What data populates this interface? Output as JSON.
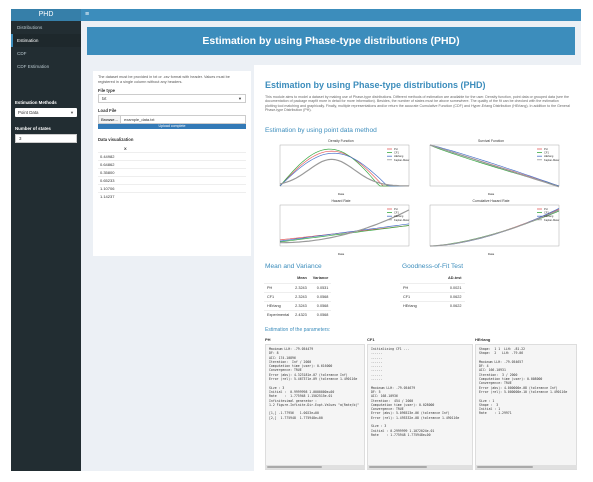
{
  "header": {
    "logo": "PHD",
    "menu_icon": "hamburger-icon"
  },
  "sidebar": {
    "items": [
      {
        "label": "Distributions"
      },
      {
        "label": "Estimation"
      },
      {
        "label": "CDF"
      },
      {
        "label": "CDF Estimation"
      }
    ],
    "estimation_methods_label": "Estimation Methods",
    "estimation_method_value": "Point Data",
    "num_states_label": "Number of states",
    "num_states_value": "3"
  },
  "page_title": "Estimation by using Phase-type distributions (PHD)",
  "left_panel": {
    "note": "The dataset must be provided in txt or .csv format with header. Values must be registered in a single column without any headers.",
    "file_type_label": "File type",
    "file_type_value": "txt",
    "load_file_label": "Load File",
    "browse_label": "Browse...",
    "file_name": "example_data.txt",
    "upload_status": "Upload complete",
    "data_viz_label": "Data visualization",
    "table_header": "X",
    "table_rows": [
      "0.44982",
      "0.64862",
      "0.35800",
      "0.65233",
      "1.10706",
      "1.14237"
    ]
  },
  "main": {
    "title": "Estimation by using Phase-type distributions (PHD)",
    "description": "This module aims to model a dataset by making use of Phase-type distributions. Different methods of estimation are available for the user. Density function, point data or grouped data (see the documentation of package mapfit more in detail for more information). Besides, the number of states must be above somewhere. The quality of the fit can be checked with the estimation plotting tool matching and graphically. Finally, multiple representations and/or return the accurate Cumulative Function (CDF) and Hyper-Erlang Distribution (HErlang). In addition to the General Phase-type Distribution (PH).",
    "point_method_title": "Estimation by using point data method",
    "mean_variance_title": "Mean and Variance",
    "gof_title": "Goodness-of-Fit Test",
    "estimation_params_title": "Estimation of the parameters:"
  },
  "plots": [
    {
      "title": "Density Function",
      "xlabel": "Data"
    },
    {
      "title": "Survival Function",
      "xlabel": "Data"
    },
    {
      "title": "Hazard Rate",
      "xlabel": "Data"
    },
    {
      "title": "Cumulative Hazard Rate",
      "xlabel": "Data"
    }
  ],
  "legend": [
    "PH",
    "CF1",
    "HErlang",
    "Kaplan-Meier"
  ],
  "mean_variance": {
    "headers": [
      "",
      "Mean",
      "Variance"
    ],
    "rows": [
      [
        "PH",
        "2.3243",
        "0.0531"
      ],
      [
        "CF1",
        "2.3243",
        "0.0568"
      ],
      [
        "HErlang",
        "2.3243",
        "0.0568"
      ],
      [
        "Experimental",
        "2.4323",
        "0.0568"
      ]
    ]
  },
  "gof": {
    "headers": [
      "",
      "AD-test"
    ],
    "rows": [
      [
        "PH",
        "0.0021"
      ],
      [
        "CF1",
        "0.0622"
      ],
      [
        "HErlang",
        "0.0622"
      ]
    ]
  },
  "estimation": [
    {
      "name": "PH",
      "text": "Maximum LLH: -79.054479\nDF: 8\nAIC: 174.10896\nIteration:  Inf / 2000\nComputation time (user): 0.616000\nConvergence: TRUE\nError (abs): 4.323181e-07 (tolerance Inf)\nError (rel): 5.467371e-09 (tolerance 1.490116e\n\nSize : 3\nInitial :  0.9999998 1.0000000e+00\nRate    :  1.775948 1.1502515e-01\nInfinitesimal generator :\n1.2 Figure-Infinite-Dir-Expt-Values \"a(Rate/b)\"\n\n[1,] -1.77956   1.0023e+00\n[2,]  1.775948  1.775948e+00"
    },
    {
      "name": "CF1",
      "text": "Initializing CF1 ...\n......\n......\n......\n......\n......\n......\n......\n\nMaximum LLH: -79.054679\nDF: 5\nAIC: 168.10936\nIteration:  454 / 2000\nComputation time (user): 0.028000\nConvergence: TRUE\nError (abs): 5.096523e-06 (tolerance Inf)\nError (rel): 1.495332e-08 (tolerance 1.490116e\n\nSize : 3\nInitial : 0.2999999 1.1072024e-01\nRate    : 1.775948 1.775948e+00"
    },
    {
      "name": "HErlang",
      "text": "Shape:  1 1  LLH: -81.22\nShape:  2   LLH: -79.06\n\nMaximum LLH: -79.054657\nDF: 4\nAIC: 166.10931\nIteration:  3 / 2000\nComputation time (user): 0.008000\nConvergence: TRUE\nError (abs): 4.000000e-08 (tolerance Inf)\nError (rel): 5.000000e-10 (tolerance 1.490116e\n\nSize : 1\nShape :  3\nInitial : 1\nRate    : 1.29971"
    }
  ],
  "colors": {
    "accent": "#3c8dbc",
    "sidebar": "#222d32",
    "ph": "#e55d5d",
    "cf1": "#3aa845",
    "herlang": "#4a72c9",
    "empirical": "#9a9a9a"
  }
}
